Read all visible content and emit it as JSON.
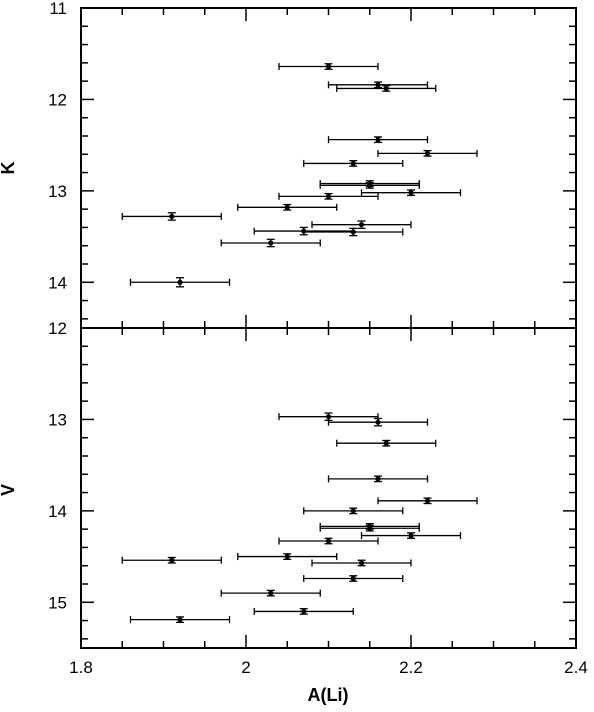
{
  "chart_data": [
    {
      "type": "scatter",
      "panel": "top",
      "xlabel": "",
      "ylabel": "K",
      "xlim": [
        1.8,
        2.4
      ],
      "ylim": [
        14.5,
        11
      ],
      "y_inverted": true,
      "yticks": [
        "11",
        "12",
        "13",
        "14"
      ],
      "points": [
        {
          "x": 2.1,
          "y": 11.64,
          "xerr": 0.06,
          "yerr": 0.03
        },
        {
          "x": 2.16,
          "y": 11.84,
          "xerr": 0.06,
          "yerr": 0.03
        },
        {
          "x": 2.17,
          "y": 11.88,
          "xerr": 0.06,
          "yerr": 0.03
        },
        {
          "x": 2.16,
          "y": 12.44,
          "xerr": 0.06,
          "yerr": 0.03
        },
        {
          "x": 2.22,
          "y": 12.59,
          "xerr": 0.06,
          "yerr": 0.03
        },
        {
          "x": 2.13,
          "y": 12.7,
          "xerr": 0.06,
          "yerr": 0.03
        },
        {
          "x": 2.15,
          "y": 12.92,
          "xerr": 0.06,
          "yerr": 0.03
        },
        {
          "x": 2.15,
          "y": 12.94,
          "xerr": 0.06,
          "yerr": 0.03
        },
        {
          "x": 2.2,
          "y": 13.02,
          "xerr": 0.06,
          "yerr": 0.03
        },
        {
          "x": 2.1,
          "y": 13.06,
          "xerr": 0.06,
          "yerr": 0.03
        },
        {
          "x": 2.05,
          "y": 13.18,
          "xerr": 0.06,
          "yerr": 0.03
        },
        {
          "x": 1.91,
          "y": 13.28,
          "xerr": 0.06,
          "yerr": 0.04
        },
        {
          "x": 2.14,
          "y": 13.37,
          "xerr": 0.06,
          "yerr": 0.04
        },
        {
          "x": 2.07,
          "y": 13.44,
          "xerr": 0.06,
          "yerr": 0.04
        },
        {
          "x": 2.13,
          "y": 13.45,
          "xerr": 0.06,
          "yerr": 0.04
        },
        {
          "x": 2.03,
          "y": 13.57,
          "xerr": 0.06,
          "yerr": 0.04
        },
        {
          "x": 1.92,
          "y": 14.0,
          "xerr": 0.06,
          "yerr": 0.05
        }
      ]
    },
    {
      "type": "scatter",
      "panel": "bottom",
      "xlabel": "A(Li)",
      "ylabel": "V",
      "xlim": [
        1.8,
        2.4
      ],
      "ylim": [
        15.5,
        12
      ],
      "y_inverted": true,
      "xticks": [
        "1.8",
        "2",
        "2.2",
        "2.4"
      ],
      "yticks": [
        "12",
        "13",
        "14",
        "15"
      ],
      "points": [
        {
          "x": 2.1,
          "y": 12.97,
          "xerr": 0.06,
          "yerr": 0.04
        },
        {
          "x": 2.16,
          "y": 13.03,
          "xerr": 0.06,
          "yerr": 0.04
        },
        {
          "x": 2.17,
          "y": 13.26,
          "xerr": 0.06,
          "yerr": 0.03
        },
        {
          "x": 2.16,
          "y": 13.65,
          "xerr": 0.06,
          "yerr": 0.03
        },
        {
          "x": 2.22,
          "y": 13.89,
          "xerr": 0.06,
          "yerr": 0.03
        },
        {
          "x": 2.13,
          "y": 14.0,
          "xerr": 0.06,
          "yerr": 0.03
        },
        {
          "x": 2.15,
          "y": 14.17,
          "xerr": 0.06,
          "yerr": 0.03
        },
        {
          "x": 2.15,
          "y": 14.19,
          "xerr": 0.06,
          "yerr": 0.03
        },
        {
          "x": 2.2,
          "y": 14.27,
          "xerr": 0.06,
          "yerr": 0.03
        },
        {
          "x": 2.1,
          "y": 14.33,
          "xerr": 0.06,
          "yerr": 0.03
        },
        {
          "x": 2.05,
          "y": 14.5,
          "xerr": 0.06,
          "yerr": 0.03
        },
        {
          "x": 1.91,
          "y": 14.54,
          "xerr": 0.06,
          "yerr": 0.03
        },
        {
          "x": 2.14,
          "y": 14.57,
          "xerr": 0.06,
          "yerr": 0.03
        },
        {
          "x": 2.13,
          "y": 14.74,
          "xerr": 0.06,
          "yerr": 0.03
        },
        {
          "x": 2.03,
          "y": 14.9,
          "xerr": 0.06,
          "yerr": 0.03
        },
        {
          "x": 2.07,
          "y": 15.1,
          "xerr": 0.06,
          "yerr": 0.03
        },
        {
          "x": 1.92,
          "y": 15.19,
          "xerr": 0.06,
          "yerr": 0.03
        }
      ]
    }
  ]
}
